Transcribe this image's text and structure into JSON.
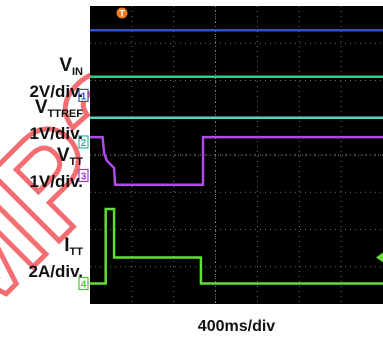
{
  "chart_data": {
    "type": "line",
    "title": "",
    "xlabel": "400ms/div",
    "xlim": [
      0,
      2800
    ],
    "grid": true,
    "grid_divisions": {
      "x": 7,
      "y": 8
    },
    "watermark": "MP20",
    "channels": [
      {
        "id": "1",
        "name": "VIN",
        "name_main": "V",
        "name_sub": "IN",
        "scale": "2V/div.",
        "color": "#4fd6c3",
        "marker_color": "#3d4fc8",
        "marker_div": 5.6,
        "points": [
          [
            0,
            5.0
          ],
          [
            2800,
            5.0
          ]
        ]
      },
      {
        "id": "2",
        "name": "VTTREF",
        "name_main": "V",
        "name_sub": "TTREF",
        "scale": "1V/div.",
        "color": "#2fd08a",
        "marker_color": "#2fb8a8",
        "marker_div": 4.35,
        "points": [
          [
            0,
            6.1
          ],
          [
            2800,
            6.1
          ]
        ]
      },
      {
        "id": "3",
        "name": "VTT",
        "name_main": "V",
        "name_sub": "TT",
        "scale": "1V/div.",
        "color": "#b04ae8",
        "marker_color": "#9a38d6",
        "marker_div": 3.45,
        "points": [
          [
            0,
            4.48
          ],
          [
            120,
            4.48
          ],
          [
            135,
            4.05
          ],
          [
            160,
            3.85
          ],
          [
            230,
            3.65
          ],
          [
            240,
            3.2
          ],
          [
            1080,
            3.2
          ],
          [
            1080,
            4.48
          ],
          [
            2800,
            4.48
          ]
        ]
      },
      {
        "id": "4",
        "name": "ITT",
        "name_main": "I",
        "name_sub": "TT",
        "scale": "2A/div.",
        "color": "#66dd33",
        "marker_color": "#55c13a",
        "marker_div": 0.55,
        "points": [
          [
            0,
            0.55
          ],
          [
            150,
            0.55
          ],
          [
            150,
            2.55
          ],
          [
            230,
            2.55
          ],
          [
            230,
            1.25
          ],
          [
            1060,
            1.25
          ],
          [
            1060,
            0.55
          ],
          [
            2800,
            0.55
          ]
        ]
      }
    ],
    "extra_trace": {
      "color": "#2c4fd8",
      "points": [
        [
          0,
          7.35
        ],
        [
          2800,
          7.35
        ]
      ]
    },
    "trigger_marker": {
      "label": "T",
      "color": "#f07a22"
    }
  }
}
